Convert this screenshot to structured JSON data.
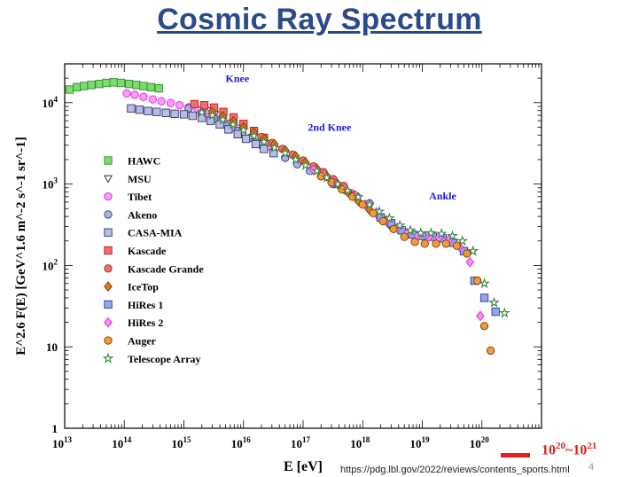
{
  "slide": {
    "title": "Cosmic Ray Spectrum",
    "credit": "https://pdg.lbl.gov/2022/reviews/contents_sports.html",
    "slide_number": "4",
    "range_note_base": "10",
    "range_note_exp1": "20",
    "range_note_sep": "~10",
    "range_note_exp2": "21",
    "accent_color": "#e0201e",
    "title_color": "#2b4a8a"
  },
  "chart_data": {
    "type": "scatter",
    "xlabel": "E [eV]",
    "ylabel": "E^2.6 F(E) [GeV^1.6 m^-2 s^-1 sr^-1]",
    "x_scale": "log",
    "y_scale": "log",
    "xlim": [
      10000000000000.0,
      1e+21
    ],
    "ylim": [
      1,
      30000
    ],
    "x_ticks": [
      {
        "exp": "13",
        "value": 10000000000000.0
      },
      {
        "exp": "14",
        "value": 100000000000000.0
      },
      {
        "exp": "15",
        "value": 1000000000000000.0
      },
      {
        "exp": "16",
        "value": 1e+16
      },
      {
        "exp": "17",
        "value": 1e+17
      },
      {
        "exp": "18",
        "value": 1e+18
      },
      {
        "exp": "19",
        "value": 1e+19
      },
      {
        "exp": "20",
        "value": 1e+20
      }
    ],
    "y_ticks": [
      {
        "base": "1",
        "exp": "",
        "value": 1
      },
      {
        "base": "10",
        "exp": "",
        "value": 10
      },
      {
        "base": "10",
        "exp": "2",
        "value": 100
      },
      {
        "base": "10",
        "exp": "3",
        "value": 1000
      },
      {
        "base": "10",
        "exp": "4",
        "value": 10000
      }
    ],
    "annotations": [
      {
        "text": "Knee",
        "x": 5000000000000000.0,
        "y": 18000,
        "color": "#1a1ad6"
      },
      {
        "text": "2nd Knee",
        "x": 1.2e+17,
        "y": 4500,
        "color": "#1a1ad6"
      },
      {
        "text": "Ankle",
        "x": 1.3e+19,
        "y": 650,
        "color": "#1a1ad6"
      }
    ],
    "legend_position": "left",
    "series": [
      {
        "name": "HAWC",
        "marker": "square",
        "fill": "#7ddc6e",
        "stroke": "#2e8b2e",
        "points": [
          [
            12000000000000.0,
            14500
          ],
          [
            16000000000000.0,
            15500
          ],
          [
            21000000000000.0,
            16000
          ],
          [
            28000000000000.0,
            16500
          ],
          [
            38000000000000.0,
            17000
          ],
          [
            50000000000000.0,
            17500
          ],
          [
            66000000000000.0,
            17800
          ],
          [
            88000000000000.0,
            17500
          ],
          [
            120000000000000.0,
            17000
          ],
          [
            160000000000000.0,
            16500
          ],
          [
            210000000000000.0,
            16000
          ],
          [
            280000000000000.0,
            15500
          ],
          [
            380000000000000.0,
            15000
          ]
        ]
      },
      {
        "name": "MSU",
        "marker": "triangle-down",
        "fill": "#ffffff",
        "stroke": "#333333",
        "points": [
          [
            2500000000000000.0,
            8000
          ],
          [
            3300000000000000.0,
            7200
          ],
          [
            4500000000000000.0,
            6300
          ],
          [
            6000000000000000.0,
            5600
          ],
          [
            8000000000000000.0,
            4900
          ]
        ]
      },
      {
        "name": "Tibet",
        "marker": "circle",
        "fill": "#ff9aff",
        "stroke": "#cc33cc",
        "points": [
          [
            110000000000000.0,
            13000
          ],
          [
            150000000000000.0,
            12500
          ],
          [
            210000000000000.0,
            11800
          ],
          [
            300000000000000.0,
            11000
          ],
          [
            420000000000000.0,
            10400
          ],
          [
            600000000000000.0,
            9900
          ],
          [
            850000000000000.0,
            9300
          ],
          [
            1200000000000000.0,
            8800
          ],
          [
            1700000000000000.0,
            8200
          ],
          [
            2400000000000000.0,
            7400
          ],
          [
            3400000000000000.0,
            6400
          ],
          [
            4800000000000000.0,
            5600
          ],
          [
            6800000000000000.0,
            4900
          ],
          [
            9600000000000000.0,
            4300
          ],
          [
            1.4e+16,
            3800
          ],
          [
            1.9e+16,
            3300
          ],
          [
            2.7e+16,
            2900
          ]
        ]
      },
      {
        "name": "Akeno",
        "marker": "circle",
        "fill": "#a9b3e8",
        "stroke": "#333366",
        "points": [
          [
            1200000000000000.0,
            8500
          ],
          [
            2000000000000000.0,
            7400
          ],
          [
            3200000000000000.0,
            6300
          ],
          [
            5000000000000000.0,
            5300
          ],
          [
            8000000000000000.0,
            4500
          ],
          [
            1.3e+16,
            3700
          ],
          [
            2e+16,
            3000
          ],
          [
            3.2e+16,
            2500
          ],
          [
            5e+16,
            2100
          ],
          [
            8e+16,
            1750
          ],
          [
            1.3e+17,
            1450
          ],
          [
            2e+17,
            1250
          ],
          [
            3.2e+17,
            1000
          ],
          [
            5e+17,
            850
          ],
          [
            8e+17,
            700
          ],
          [
            1.3e+18,
            580
          ]
        ]
      },
      {
        "name": "CASA-MIA",
        "marker": "square",
        "fill": "#b7bfe8",
        "stroke": "#333366",
        "points": [
          [
            130000000000000.0,
            8500
          ],
          [
            180000000000000.0,
            8200
          ],
          [
            250000000000000.0,
            7900
          ],
          [
            350000000000000.0,
            7700
          ],
          [
            500000000000000.0,
            7500
          ],
          [
            700000000000000.0,
            7300
          ],
          [
            1000000000000000.0,
            7200
          ],
          [
            1400000000000000.0,
            6900
          ],
          [
            2000000000000000.0,
            6500
          ],
          [
            2800000000000000.0,
            6000
          ],
          [
            4000000000000000.0,
            5400
          ],
          [
            5600000000000000.0,
            4700
          ],
          [
            8000000000000000.0,
            4100
          ],
          [
            1.1e+16,
            3600
          ],
          [
            1.6e+16,
            3100
          ],
          [
            2.2e+16,
            2700
          ],
          [
            3.2e+16,
            2400
          ]
        ]
      },
      {
        "name": "Kascade",
        "marker": "square",
        "fill": "#f26d6d",
        "stroke": "#b22222",
        "points": [
          [
            1500000000000000.0,
            9600
          ],
          [
            2200000000000000.0,
            9300
          ],
          [
            3200000000000000.0,
            8700
          ],
          [
            4600000000000000.0,
            7700
          ],
          [
            6800000000000000.0,
            6600
          ],
          [
            1e+16,
            5500
          ],
          [
            1.5e+16,
            4500
          ],
          [
            2.2e+16,
            3700
          ]
        ]
      },
      {
        "name": "Kascade Grande",
        "marker": "circle",
        "fill": "#f26d6d",
        "stroke": "#b22222",
        "points": [
          [
            2e+16,
            3800
          ],
          [
            3e+16,
            3200
          ],
          [
            4.5e+16,
            2700
          ],
          [
            6.7e+16,
            2300
          ],
          [
            1e+17,
            1950
          ],
          [
            1.5e+17,
            1650
          ],
          [
            2.2e+17,
            1400
          ],
          [
            3.2e+17,
            1150
          ],
          [
            4.8e+17,
            950
          ],
          [
            7e+17,
            750
          ]
        ]
      },
      {
        "name": "IceTop",
        "marker": "diamond",
        "fill": "#e07a1f",
        "stroke": "#7a3a00",
        "points": [
          [
            3000000000000000.0,
            7700
          ],
          [
            4500000000000000.0,
            6800
          ],
          [
            6800000000000000.0,
            5900
          ],
          [
            1e+16,
            5000
          ],
          [
            1.5e+16,
            4300
          ],
          [
            2.2e+16,
            3600
          ],
          [
            3.3e+16,
            3100
          ],
          [
            5e+16,
            2600
          ],
          [
            7.5e+16,
            2200
          ],
          [
            1.1e+17,
            1850
          ],
          [
            1.7e+17,
            1550
          ],
          [
            2.5e+17,
            1250
          ],
          [
            3.8e+17,
            1000
          ],
          [
            5.6e+17,
            800
          ],
          [
            8.4e+17,
            620
          ],
          [
            1.3e+18,
            480
          ],
          [
            1.9e+18,
            390
          ],
          [
            2.8e+18,
            320
          ]
        ]
      },
      {
        "name": "HiRes 1",
        "marker": "square",
        "fill": "#8fa8f2",
        "stroke": "#333399",
        "points": [
          [
            2e+18,
            390
          ],
          [
            3e+18,
            330
          ],
          [
            4.5e+18,
            270
          ],
          [
            6.8e+18,
            240
          ],
          [
            1e+19,
            230
          ],
          [
            1.5e+19,
            225
          ],
          [
            2.2e+19,
            215
          ],
          [
            3.3e+19,
            190
          ],
          [
            5e+19,
            150
          ],
          [
            7.5e+19,
            65
          ],
          [
            1.1e+20,
            40
          ],
          [
            1.7e+20,
            27
          ]
        ]
      },
      {
        "name": "HiRes 2",
        "marker": "diamond",
        "fill": "#ff8aff",
        "stroke": "#cc33cc",
        "points": [
          [
            1.5e+17,
            1500
          ],
          [
            2.2e+17,
            1300
          ],
          [
            3.3e+17,
            1050
          ],
          [
            5e+17,
            880
          ],
          [
            7.5e+17,
            720
          ],
          [
            1.1e+18,
            560
          ],
          [
            1.7e+18,
            450
          ],
          [
            2.5e+18,
            360
          ],
          [
            3.8e+18,
            290
          ],
          [
            5.6e+18,
            250
          ],
          [
            8.4e+18,
            230
          ],
          [
            1.3e+19,
            225
          ],
          [
            1.9e+19,
            220
          ],
          [
            2.8e+19,
            205
          ],
          [
            4.2e+19,
            170
          ],
          [
            6.3e+19,
            110
          ],
          [
            9.4e+19,
            24
          ]
        ]
      },
      {
        "name": "Auger",
        "marker": "circle",
        "fill": "#f29a3b",
        "stroke": "#7a3a00",
        "points": [
          [
            2e+17,
            1250
          ],
          [
            3e+17,
            1050
          ],
          [
            4.5e+17,
            860
          ],
          [
            6.7e+17,
            700
          ],
          [
            1e+18,
            560
          ],
          [
            1.5e+18,
            440
          ],
          [
            2.2e+18,
            350
          ],
          [
            3.3e+18,
            280
          ],
          [
            5e+18,
            225
          ],
          [
            7.5e+18,
            195
          ],
          [
            1.1e+19,
            185
          ],
          [
            1.7e+19,
            185
          ],
          [
            2.5e+19,
            185
          ],
          [
            3.8e+19,
            175
          ],
          [
            5.6e+19,
            140
          ],
          [
            8.4e+19,
            65
          ],
          [
            1.1e+20,
            18
          ],
          [
            1.4e+20,
            9
          ]
        ]
      },
      {
        "name": "Telescope Array",
        "marker": "star",
        "fill": "#ffffff",
        "stroke": "#2e7d32",
        "points": [
          [
            2000000000000000.0,
            7600
          ],
          [
            3000000000000000.0,
            7000
          ],
          [
            4500000000000000.0,
            6200
          ],
          [
            6700000000000000.0,
            5400
          ],
          [
            1e+16,
            4600
          ],
          [
            1.5e+16,
            3900
          ],
          [
            2.2e+16,
            3300
          ],
          [
            3.3e+16,
            2800
          ],
          [
            5e+16,
            2400
          ],
          [
            7.5e+16,
            2000
          ],
          [
            1.1e+17,
            1700
          ],
          [
            1.7e+17,
            1450
          ],
          [
            2.5e+17,
            1200
          ],
          [
            3.8e+17,
            1000
          ],
          [
            5.6e+17,
            830
          ],
          [
            8.4e+17,
            690
          ],
          [
            1.3e+18,
            560
          ],
          [
            1.9e+18,
            460
          ],
          [
            2.8e+18,
            380
          ],
          [
            4.2e+18,
            310
          ],
          [
            6.3e+18,
            270
          ],
          [
            9.4e+18,
            250
          ],
          [
            1.4e+19,
            250
          ],
          [
            2.1e+19,
            245
          ],
          [
            3.2e+19,
            230
          ],
          [
            4.7e+19,
            200
          ],
          [
            7.1e+19,
            150
          ],
          [
            1.1e+20,
            60
          ],
          [
            1.6e+20,
            35
          ],
          [
            2.4e+20,
            26
          ]
        ]
      }
    ]
  }
}
